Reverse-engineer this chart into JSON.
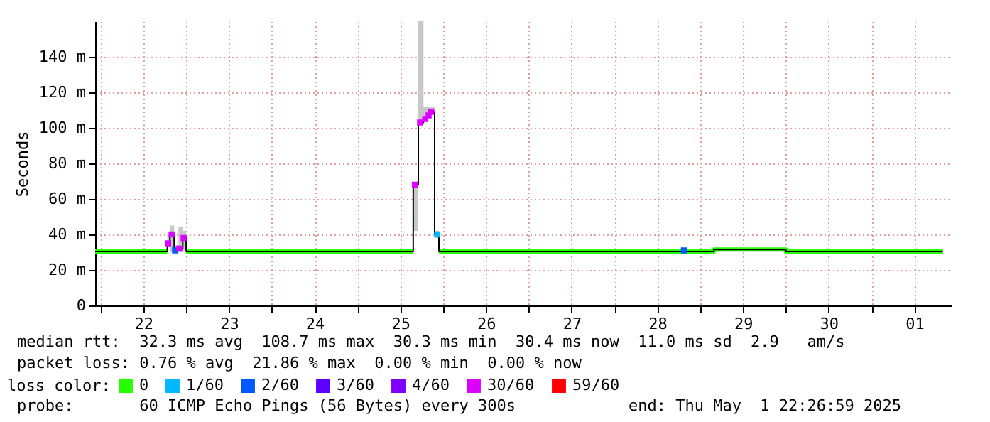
{
  "chart_data": {
    "type": "line",
    "ylabel": "Seconds",
    "xlim": [
      "2025-04-21T22:30",
      "2025-05-01T22:27"
    ],
    "xticks": [
      {
        "value": "2025-04-22T00:00",
        "label": null
      },
      {
        "value": "2025-04-22T12:00",
        "label": "22"
      },
      {
        "value": "2025-04-23T00:00",
        "label": null
      },
      {
        "value": "2025-04-23T12:00",
        "label": "23"
      },
      {
        "value": "2025-04-24T00:00",
        "label": null
      },
      {
        "value": "2025-04-24T12:00",
        "label": "24"
      },
      {
        "value": "2025-04-25T00:00",
        "label": null
      },
      {
        "value": "2025-04-25T12:00",
        "label": "25"
      },
      {
        "value": "2025-04-26T00:00",
        "label": null
      },
      {
        "value": "2025-04-26T12:00",
        "label": "26"
      },
      {
        "value": "2025-04-27T00:00",
        "label": null
      },
      {
        "value": "2025-04-27T12:00",
        "label": "27"
      },
      {
        "value": "2025-04-28T00:00",
        "label": null
      },
      {
        "value": "2025-04-28T12:00",
        "label": "28"
      },
      {
        "value": "2025-04-29T00:00",
        "label": null
      },
      {
        "value": "2025-04-29T12:00",
        "label": "29"
      },
      {
        "value": "2025-04-30T00:00",
        "label": null
      },
      {
        "value": "2025-04-30T12:00",
        "label": "30"
      },
      {
        "value": "2025-05-01T00:00",
        "label": null
      },
      {
        "value": "2025-05-01T12:00",
        "label": "01"
      }
    ],
    "ylim": [
      0,
      160
    ],
    "yticks": [
      0,
      {
        "value": 20,
        "label": "20 m"
      },
      {
        "value": 40,
        "label": "40 m"
      },
      {
        "value": 60,
        "label": "60 m"
      },
      {
        "value": 80,
        "label": "80 m"
      },
      {
        "value": 100,
        "label": "100 m"
      },
      {
        "value": 120,
        "label": "120 m"
      },
      {
        "value": 140,
        "label": "140 m"
      }
    ],
    "grid": true,
    "legend": "bottom",
    "legend_title": "loss color:",
    "series": [
      {
        "name": "0",
        "color": "#26ff00",
        "x": [
          "2025-04-21T22:30",
          "2025-04-22T18:43",
          "2025-04-22T19:12",
          "2025-04-23T00:00",
          "2025-04-25T15:36",
          "2025-04-25T16:48",
          "2025-04-25T22:48",
          "2025-04-29T03:50",
          "2025-04-29T03:50",
          "2025-04-30T00:00",
          "2025-04-30T00:00",
          "2025-05-01T20:00"
        ],
        "values": [
          30.4,
          30.4,
          null,
          30.4,
          30.4,
          null,
          30.4,
          30.4,
          31.5,
          31.5,
          30.4,
          30.4
        ]
      },
      {
        "type": "step",
        "color": "#000000",
        "x": [
          "2025-04-21T22:30",
          "2025-04-22T18:43",
          "2025-04-22T19:26",
          "2025-04-22T20:38",
          "2025-04-22T21:50",
          "2025-04-22T23:02",
          "2025-04-23T00:00",
          "2025-04-25T15:36",
          "2025-04-25T17:02",
          "2025-04-25T18:29",
          "2025-04-25T19:26",
          "2025-04-25T20:24",
          "2025-04-25T21:36",
          "2025-04-25T22:48",
          "2025-04-29T03:50",
          "2025-04-30T00:00",
          "2025-05-01T20:00"
        ],
        "values": [
          30.4,
          35,
          40,
          31,
          32,
          38,
          30.4,
          68,
          103,
          105,
          107,
          109,
          40,
          30.4,
          31.5,
          30.4,
          30.4
        ],
        "lower": [
          30.4,
          33,
          30,
          31,
          30,
          31,
          30.4,
          42,
          103,
          105,
          107,
          109,
          38,
          30.4,
          31.5,
          30.4,
          30.4
        ],
        "upper": [
          30.4,
          40,
          45,
          34,
          44,
          42,
          30.4,
          68,
          160,
          112,
          112,
          112,
          42,
          30.4,
          31.5,
          30.4,
          30.4
        ]
      },
      {
        "name": "1/60",
        "type": "scatter",
        "marker": "square",
        "color": "#00b8ff",
        "x": [
          "2025-04-25T22:19"
        ],
        "values": [
          40
        ]
      },
      {
        "name": "2/60",
        "type": "scatter",
        "marker": "square",
        "color": "#0059ff",
        "x": [
          "2025-04-22T20:53",
          "2025-04-28T19:26"
        ],
        "values": [
          31,
          31
        ]
      },
      {
        "name": "3/60",
        "type": "scatter",
        "marker": "square",
        "color": "#5e00ff"
      },
      {
        "name": "4/60",
        "type": "scatter",
        "marker": "square",
        "color": "#7e00ff"
      },
      {
        "name": "30/60",
        "type": "scatter",
        "marker": "square",
        "color": "#dd00ff",
        "x": [
          "2025-04-22T18:58",
          "2025-04-22T19:55",
          "2025-04-22T22:05",
          "2025-04-22T23:17",
          "2025-04-25T16:05",
          "2025-04-25T17:31",
          "2025-04-25T18:58",
          "2025-04-25T19:55",
          "2025-04-25T20:38"
        ],
        "values": [
          35,
          40,
          32,
          38,
          68,
          103,
          105,
          107,
          109
        ]
      },
      {
        "name": "59/60",
        "type": "scatter",
        "marker": "square",
        "color": "#ff0000"
      }
    ],
    "annotations": [
      "median rtt:  32.3 ms avg  108.7 ms max  30.3 ms min  30.4 ms now  11.0 ms sd  2.9   am/s",
      "packet loss: 0.76 % avg  21.86 % max  0.00 % min  0.00 % now",
      "probe:       60 ICMP Echo Pings (56 Bytes) every 300s            end: Thu May  1 22:26:59 2025"
    ]
  }
}
